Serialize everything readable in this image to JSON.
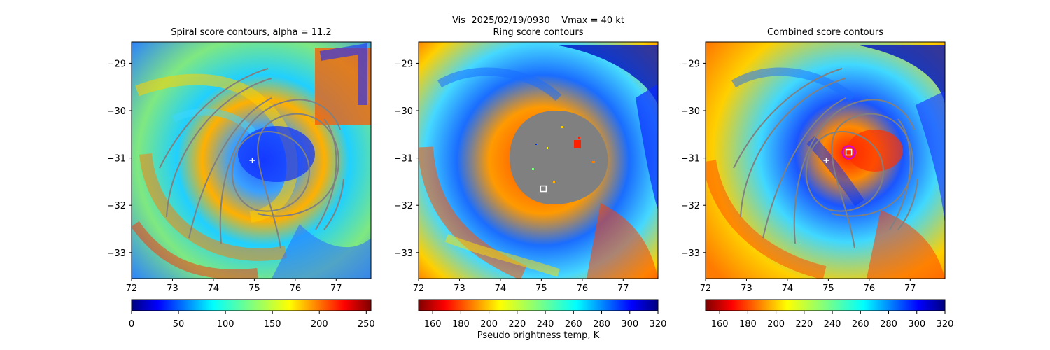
{
  "suptitle": "Vis  2025/02/19/0930    Vmax = 40 kt",
  "colorbar_label": "Pseudo brightness temp, K",
  "colors": {
    "contour": "#808080",
    "ring_mask": "#808080",
    "marker_white": "#ffffff",
    "circle_magenta": "#d400d4"
  },
  "chart_data": [
    {
      "type": "heatmap",
      "title": "Spiral score contours, alpha = 11.2",
      "xlabel": "",
      "ylabel": "",
      "xlim": [
        72,
        77.85
      ],
      "ylim": [
        -33.55,
        -28.55
      ],
      "xticks": [
        "72",
        "73",
        "74",
        "75",
        "76",
        "77"
      ],
      "yticks": [
        "−29",
        "−30",
        "−31",
        "−32",
        "−33"
      ],
      "colorbar": {
        "ticks": [
          "0",
          "50",
          "100",
          "150",
          "200",
          "250"
        ],
        "range": [
          0,
          255
        ],
        "cmap": "jet"
      },
      "markers": [
        {
          "kind": "plus",
          "lon": 74.95,
          "lat": -31.05
        }
      ]
    },
    {
      "type": "heatmap",
      "title": "Ring score contours",
      "xlabel": "",
      "ylabel": "",
      "xlim": [
        72,
        77.85
      ],
      "ylim": [
        -33.55,
        -28.55
      ],
      "xticks": [
        "72",
        "73",
        "74",
        "75",
        "76",
        "77"
      ],
      "yticks": [
        "−29",
        "−30",
        "−31",
        "−32",
        "−33"
      ],
      "colorbar": {
        "ticks": [
          "160",
          "180",
          "200",
          "220",
          "240",
          "260",
          "280",
          "300",
          "320"
        ],
        "range": [
          150,
          320
        ],
        "cmap": "jet_r"
      },
      "markers": [
        {
          "kind": "square",
          "lon": 75.05,
          "lat": -31.65
        }
      ]
    },
    {
      "type": "heatmap",
      "title": "Combined score contours",
      "xlabel": "",
      "ylabel": "",
      "xlim": [
        72,
        77.85
      ],
      "ylim": [
        -33.55,
        -28.55
      ],
      "xticks": [
        "72",
        "73",
        "74",
        "75",
        "76",
        "77"
      ],
      "yticks": [
        "−29",
        "−30",
        "−31",
        "−32",
        "−33"
      ],
      "colorbar": {
        "ticks": [
          "160",
          "180",
          "200",
          "220",
          "240",
          "260",
          "280",
          "300",
          "320"
        ],
        "range": [
          150,
          320
        ],
        "cmap": "jet_r"
      },
      "markers": [
        {
          "kind": "plus",
          "lon": 74.95,
          "lat": -31.05
        },
        {
          "kind": "circle",
          "lon": 75.5,
          "lat": -30.88
        },
        {
          "kind": "square",
          "lon": 75.5,
          "lat": -30.88
        }
      ]
    }
  ]
}
